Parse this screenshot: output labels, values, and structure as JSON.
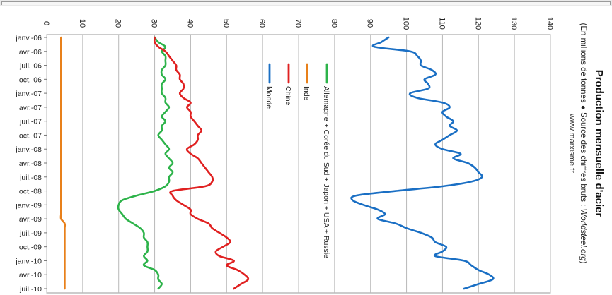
{
  "chart_data": {
    "type": "line",
    "title": "Production mensuelle d'acier",
    "subtitle_prefix": "(En millions de tonnes ● Source des chiffres bruts : ",
    "subtitle_source": "Worldsteel.org",
    "subtitle_suffix": ")",
    "website": "www.marxisme.fr",
    "ylim": [
      0,
      140
    ],
    "yticks": [
      0,
      10,
      20,
      30,
      40,
      50,
      60,
      70,
      80,
      90,
      100,
      110,
      120,
      130,
      140
    ],
    "x_tick_labels": [
      "janv.-06",
      "avr.-06",
      "juil.-06",
      "oct.-06",
      "janv.-07",
      "avr.-07",
      "juil.-07",
      "oct.-07",
      "janv.-08",
      "avr.-08",
      "juil.-08",
      "oct.-08",
      "janv.-09",
      "avr.-09",
      "juil.-09",
      "oct.-09",
      "janv.-10",
      "avr.-10",
      "juil.-10"
    ],
    "months": [
      "janv.-06",
      "févr.-06",
      "mars-06",
      "avr.-06",
      "mai-06",
      "juin-06",
      "juil.-06",
      "août-06",
      "sept.-06",
      "oct.-06",
      "nov.-06",
      "déc.-06",
      "janv.-07",
      "févr.-07",
      "mars-07",
      "avr.-07",
      "mai-07",
      "juin-07",
      "juil.-07",
      "août-07",
      "sept.-07",
      "oct.-07",
      "nov.-07",
      "déc.-07",
      "janv.-08",
      "févr.-08",
      "mars-08",
      "avr.-08",
      "mai-08",
      "juin-08",
      "juil.-08",
      "août-08",
      "sept.-08",
      "oct.-08",
      "nov.-08",
      "déc.-08",
      "janv.-09",
      "févr.-09",
      "mars-09",
      "avr.-09",
      "mai-09",
      "juin-09",
      "juil.-09",
      "août-09",
      "sept.-09",
      "oct.-09",
      "nov.-09",
      "déc.-09",
      "janv.-10",
      "févr.-10",
      "mars-10",
      "avr.-10",
      "mai-10",
      "juin-10",
      "juil.-10"
    ],
    "legend_position": "top-right",
    "grid": true,
    "series": [
      {
        "name": "Allemagne + Corée du Sud + Japon + USA + Russie",
        "color": "#2db34a",
        "values": [
          30,
          31,
          33,
          32,
          33,
          33,
          33,
          32,
          32,
          33,
          32,
          32,
          32,
          33,
          33,
          34,
          33,
          32,
          33,
          32,
          32,
          31,
          32,
          33,
          34,
          33,
          34,
          35,
          34,
          35,
          34,
          34,
          33,
          30,
          25,
          21,
          20,
          20,
          21,
          22,
          24,
          26,
          27,
          27,
          28,
          28,
          28,
          27,
          28,
          27,
          30,
          31,
          31,
          32,
          31
        ]
      },
      {
        "name": "Chine",
        "color": "#e02020",
        "values": [
          30,
          30,
          31,
          33,
          34,
          35,
          36,
          36,
          37,
          37,
          38,
          38,
          37,
          38,
          40,
          39,
          40,
          40,
          41,
          42,
          43,
          42,
          42,
          41,
          39,
          40,
          42,
          43,
          44,
          45,
          46,
          46,
          44,
          35,
          35,
          36,
          38,
          40,
          40,
          42,
          45,
          46,
          48,
          50,
          51,
          49,
          47,
          48,
          52,
          50,
          53,
          55,
          56,
          54,
          52
        ]
      },
      {
        "name": "Inde",
        "color": "#e8801a",
        "values": [
          4,
          4,
          4,
          4,
          4,
          4,
          4,
          4,
          4,
          4,
          4,
          4,
          4,
          4,
          4,
          4,
          4,
          4,
          4,
          4,
          4,
          4,
          4,
          4,
          4,
          4,
          4,
          4,
          4,
          4,
          4,
          4,
          4,
          4,
          4,
          4,
          4,
          4,
          4,
          4,
          5,
          5,
          5,
          5,
          5,
          5,
          5,
          5,
          5,
          5,
          5,
          5,
          5,
          5,
          5
        ]
      },
      {
        "name": "Monde",
        "color": "#1a6fc4",
        "values": [
          95,
          93,
          91,
          101,
          103,
          104,
          104,
          107,
          108,
          105,
          106,
          106,
          101,
          103,
          110,
          112,
          110,
          111,
          113,
          112,
          114,
          112,
          110,
          108,
          110,
          115,
          113,
          117,
          119,
          120,
          121,
          118,
          110,
          97,
          86,
          85,
          88,
          92,
          94,
          92,
          97,
          100,
          104,
          107,
          108,
          111,
          110,
          108,
          116,
          118,
          120,
          123,
          124,
          120,
          116
        ]
      }
    ]
  }
}
